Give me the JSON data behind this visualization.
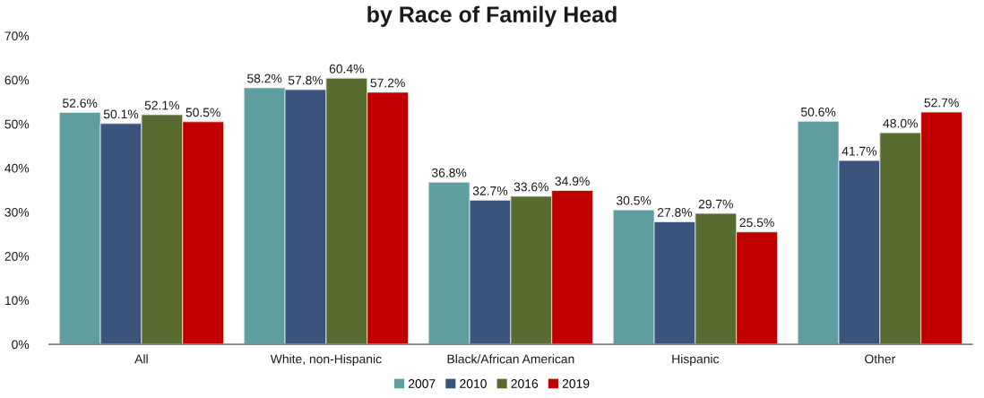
{
  "chart_data": {
    "type": "bar",
    "title": "by Race of Family Head",
    "categories": [
      "All",
      "White, non-Hispanic",
      "Black/African American",
      "Hispanic",
      "Other"
    ],
    "series": [
      {
        "name": "2007",
        "color": "#5f9ea0",
        "values": [
          52.6,
          58.2,
          36.8,
          30.5,
          50.6
        ],
        "value_labels": [
          "52.6%",
          "58.2%",
          "36.8%",
          "30.5%",
          "50.6%"
        ]
      },
      {
        "name": "2010",
        "color": "#3a547d",
        "values": [
          50.1,
          57.8,
          32.7,
          27.8,
          41.7
        ],
        "value_labels": [
          "50.1%",
          "57.8%",
          "32.7%",
          "27.8%",
          "41.7%"
        ]
      },
      {
        "name": "2016",
        "color": "#586b31",
        "values": [
          52.1,
          60.4,
          33.6,
          29.7,
          48.0
        ],
        "value_labels": [
          "52.1%",
          "60.4%",
          "33.6%",
          "29.7%",
          "48.0%"
        ]
      },
      {
        "name": "2019",
        "color": "#c00000",
        "values": [
          50.5,
          57.2,
          34.9,
          25.5,
          52.7
        ],
        "value_labels": [
          "50.5%",
          "57.2%",
          "34.9%",
          "25.5%",
          "52.7%"
        ]
      }
    ],
    "ylim": [
      0,
      70
    ],
    "yticks": [
      {
        "value": 0,
        "label": "0%"
      },
      {
        "value": 10,
        "label": "10%"
      },
      {
        "value": 20,
        "label": "20%"
      },
      {
        "value": 30,
        "label": "30%"
      },
      {
        "value": 40,
        "label": "40%"
      },
      {
        "value": 50,
        "label": "50%"
      },
      {
        "value": 60,
        "label": "60%"
      },
      {
        "value": 70,
        "label": "70%"
      }
    ],
    "grid": false,
    "legend": "bottom"
  }
}
